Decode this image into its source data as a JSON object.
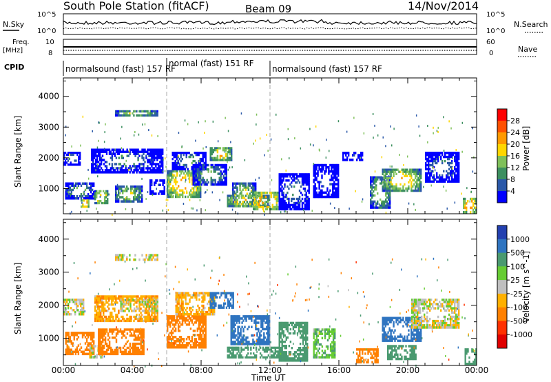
{
  "header": {
    "title": "South Pole Station (fitACF)",
    "beam": "Beam 09",
    "date": "14/Nov/2014"
  },
  "sky_panel": {
    "left_label": "N.Sky",
    "left_ticks": [
      "10^5",
      "10^0"
    ],
    "right_label": "N.Search",
    "right_ticks": [
      "10^5",
      "10^0"
    ]
  },
  "freq_panel": {
    "left_label_1": "Freq.",
    "left_label_2": "[MHz]",
    "left_ticks": [
      "10",
      "8"
    ],
    "right_label": "Nave",
    "right_ticks": [
      "60",
      "0"
    ]
  },
  "cpid_panel": {
    "label": "CPID",
    "segments": [
      {
        "label": "normalsound (fast) 157 RF",
        "start_hour": 0,
        "end_hour": 6
      },
      {
        "label": "normal (fast) 151 RF",
        "start_hour": 6,
        "end_hour": 12
      },
      {
        "label": "normalsound (fast) 157 RF",
        "start_hour": 12,
        "end_hour": 24
      }
    ]
  },
  "x_axis": {
    "label": "Time UT",
    "ticks": [
      "00:00",
      "04:00",
      "08:00",
      "12:00",
      "16:00",
      "20:00",
      "00:00"
    ]
  },
  "power_colorbar": {
    "label": "Power [dB]",
    "ticks": [
      "28",
      "24",
      "20",
      "16",
      "12",
      "8",
      "4"
    ],
    "colors": [
      "#ff0000",
      "#ff5000",
      "#ff9900",
      "#ffd600",
      "#7fc05a",
      "#3c8f5f",
      "#2a58a8",
      "#0000ff"
    ]
  },
  "velocity_colorbar": {
    "label": "Velocity [m s^-1]",
    "ticks": [
      "1000",
      "500",
      "100",
      "25",
      "-25",
      "-100",
      "-500",
      "-1000"
    ],
    "colors": [
      "#2340b0",
      "#2f74c0",
      "#4a9a70",
      "#66cc33",
      "#bfbfbf",
      "#ffb000",
      "#ff8000",
      "#ff3000",
      "#e00000"
    ]
  },
  "chart_data": [
    {
      "type": "heatmap",
      "title": "",
      "xlabel": "Time UT",
      "ylabel": "Slant Range [km]",
      "xlim": [
        0,
        24
      ],
      "ylim": [
        180,
        4600
      ],
      "yticks": [
        1000,
        2000,
        3000,
        4000
      ],
      "colorbar_label": "Power [dB]",
      "colorbar_ticks": [
        28,
        24,
        20,
        16,
        12,
        8,
        4
      ],
      "regions": [
        {
          "t0": 0.0,
          "t1": 1.0,
          "r0": 1750,
          "r1": 2200,
          "value": 12
        },
        {
          "t0": 0.1,
          "t1": 1.8,
          "r0": 650,
          "r1": 1200,
          "value": 16
        },
        {
          "t0": 1.0,
          "t1": 1.5,
          "r0": 380,
          "r1": 650,
          "value": 28
        },
        {
          "t0": 1.8,
          "t1": 2.6,
          "r0": 500,
          "r1": 950,
          "value": 24
        },
        {
          "t0": 3.0,
          "t1": 4.6,
          "r0": 550,
          "r1": 1100,
          "value": 20
        },
        {
          "t0": 1.6,
          "t1": 5.8,
          "r0": 1500,
          "r1": 2300,
          "value": 12
        },
        {
          "t0": 3.0,
          "t1": 5.5,
          "r0": 3350,
          "r1": 3550,
          "value": 20
        },
        {
          "t0": 5.0,
          "t1": 5.9,
          "r0": 800,
          "r1": 1300,
          "value": 10
        },
        {
          "t0": 6.0,
          "t1": 8.0,
          "r0": 700,
          "r1": 1600,
          "value": 26
        },
        {
          "t0": 6.3,
          "t1": 8.3,
          "r0": 1600,
          "r1": 2200,
          "value": 14
        },
        {
          "t0": 7.5,
          "t1": 9.5,
          "r0": 1100,
          "r1": 1800,
          "value": 16
        },
        {
          "t0": 8.5,
          "t1": 9.8,
          "r0": 1900,
          "r1": 2350,
          "value": 24
        },
        {
          "t0": 9.8,
          "t1": 11.2,
          "r0": 400,
          "r1": 1200,
          "value": 20
        },
        {
          "t0": 9.5,
          "t1": 12.0,
          "r0": 400,
          "r1": 800,
          "value": 24
        },
        {
          "t0": 11.0,
          "t1": 12.5,
          "r0": 300,
          "r1": 900,
          "value": 28
        },
        {
          "t0": 12.5,
          "t1": 14.3,
          "r0": 300,
          "r1": 1500,
          "value": 12
        },
        {
          "t0": 14.5,
          "t1": 16.0,
          "r0": 700,
          "r1": 1800,
          "value": 8
        },
        {
          "t0": 16.2,
          "t1": 17.4,
          "r0": 1900,
          "r1": 2200,
          "value": 8
        },
        {
          "t0": 17.8,
          "t1": 19.0,
          "r0": 350,
          "r1": 1400,
          "value": 20
        },
        {
          "t0": 18.5,
          "t1": 20.8,
          "r0": 900,
          "r1": 1650,
          "value": 24
        },
        {
          "t0": 21.0,
          "t1": 23.0,
          "r0": 1200,
          "r1": 2200,
          "value": 12
        },
        {
          "t0": 23.2,
          "t1": 24.0,
          "r0": 200,
          "r1": 700,
          "value": 28
        }
      ]
    },
    {
      "type": "heatmap",
      "title": "",
      "xlabel": "Time UT",
      "ylabel": "Slant Range [km]",
      "xlim": [
        0,
        24
      ],
      "ylim": [
        180,
        4600
      ],
      "yticks": [
        1000,
        2000,
        3000,
        4000
      ],
      "colorbar_label": "Velocity [m s^-1]",
      "colorbar_ticks": [
        1000,
        500,
        100,
        25,
        -25,
        -100,
        -500,
        -1000
      ],
      "regions": [
        {
          "t0": 0.0,
          "t1": 1.2,
          "r0": 1700,
          "r1": 2200,
          "value": 0
        },
        {
          "t0": 0.1,
          "t1": 1.8,
          "r0": 500,
          "r1": 1200,
          "value": -300
        },
        {
          "t0": 1.5,
          "t1": 2.3,
          "r0": 400,
          "r1": 800,
          "value": 0
        },
        {
          "t0": 2.0,
          "t1": 4.7,
          "r0": 500,
          "r1": 1300,
          "value": -300
        },
        {
          "t0": 1.8,
          "t1": 5.5,
          "r0": 1500,
          "r1": 2300,
          "value": -80
        },
        {
          "t0": 3.3,
          "t1": 5.5,
          "r0": 1800,
          "r1": 2200,
          "value": 0
        },
        {
          "t0": 3.0,
          "t1": 5.5,
          "r0": 3350,
          "r1": 3550,
          "value": 0
        },
        {
          "t0": 6.0,
          "t1": 8.3,
          "r0": 700,
          "r1": 1700,
          "value": -300
        },
        {
          "t0": 6.5,
          "t1": 8.8,
          "r0": 1700,
          "r1": 2400,
          "value": -60
        },
        {
          "t0": 8.5,
          "t1": 9.9,
          "r0": 1900,
          "r1": 2400,
          "value": 700
        },
        {
          "t0": 9.7,
          "t1": 12.0,
          "r0": 800,
          "r1": 1700,
          "value": 700
        },
        {
          "t0": 9.5,
          "t1": 12.5,
          "r0": 400,
          "r1": 750,
          "value": 200
        },
        {
          "t0": 12.5,
          "t1": 14.2,
          "r0": 300,
          "r1": 1500,
          "value": 200
        },
        {
          "t0": 14.5,
          "t1": 15.8,
          "r0": 400,
          "r1": 1300,
          "value": 80
        },
        {
          "t0": 17.0,
          "t1": 18.3,
          "r0": 250,
          "r1": 700,
          "value": -300
        },
        {
          "t0": 18.5,
          "t1": 20.8,
          "r0": 900,
          "r1": 1650,
          "value": 700
        },
        {
          "t0": 18.8,
          "t1": 20.5,
          "r0": 350,
          "r1": 800,
          "value": 200
        },
        {
          "t0": 20.2,
          "t1": 23.0,
          "r0": 1300,
          "r1": 2200,
          "value": 0
        },
        {
          "t0": 23.3,
          "t1": 24.0,
          "r0": 200,
          "r1": 700,
          "value": 200
        }
      ]
    }
  ]
}
